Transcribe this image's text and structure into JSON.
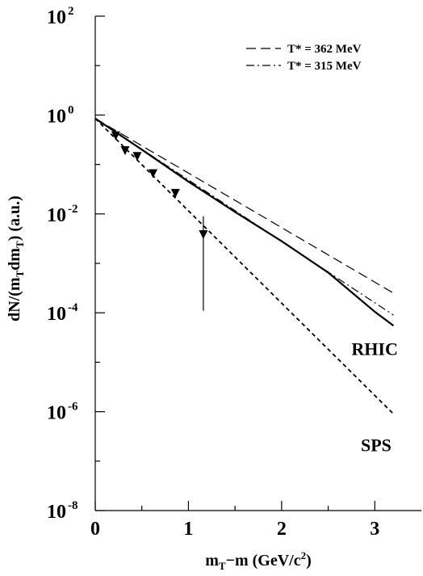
{
  "chart_data": {
    "type": "line",
    "xlabel": "m_T−m (GeV/c^2)",
    "ylabel": "dN/(m_T dm_T) (a.u.)",
    "xlabel_parts": {
      "m": "m",
      "sub": "T",
      "rest": "−m (GeV/c",
      "sup": "2",
      "close": ")"
    },
    "ylabel_parts": {
      "pre": "dN/(m",
      "sub1": "T",
      "mid": "dm",
      "sub2": "T",
      "post": ") (a.u.)"
    },
    "xlim": [
      0,
      3.5
    ],
    "ylim_log10": [
      -8,
      2
    ],
    "y_scale": "log",
    "x_ticks": [
      {
        "value": 0,
        "label": "0"
      },
      {
        "value": 1,
        "label": "1"
      },
      {
        "value": 2,
        "label": "2"
      },
      {
        "value": 3,
        "label": "3"
      }
    ],
    "y_ticks": [
      {
        "exp": 2,
        "base": "10",
        "sup": "2"
      },
      {
        "exp": 0,
        "base": "10",
        "sup": "0"
      },
      {
        "exp": -2,
        "base": "10",
        "sup": "-2"
      },
      {
        "exp": -4,
        "base": "10",
        "sup": "-4"
      },
      {
        "exp": -6,
        "base": "10",
        "sup": "-6"
      },
      {
        "exp": -8,
        "base": "10",
        "sup": "-8"
      }
    ],
    "grid": false,
    "legend_position": "top-right",
    "legend": [
      {
        "label": "T* = 362 MeV",
        "style": "dashed"
      },
      {
        "label": "T* = 315 MeV",
        "style": "dash-dot"
      }
    ],
    "series": [
      {
        "style": "dashed",
        "x": [
          0,
          3.2
        ],
        "y": [
          0.85,
          0.00025
        ]
      },
      {
        "style": "dash-dot",
        "x": [
          0,
          3.2
        ],
        "y": [
          0.85,
          9e-05
        ]
      },
      {
        "style": "solid",
        "label": "RHIC",
        "x": [
          0,
          0.5,
          1.0,
          1.5,
          2.0,
          2.5,
          3.0,
          3.2
        ],
        "y": [
          0.85,
          0.2,
          0.045,
          0.011,
          0.0028,
          0.00065,
          0.000105,
          5.5e-05
        ]
      },
      {
        "style": "short-dashed",
        "label": "SPS",
        "x": [
          0,
          3.2
        ],
        "y": [
          0.85,
          9e-07
        ]
      }
    ],
    "data_points": [
      {
        "x": 0.22,
        "y": 0.38
      },
      {
        "x": 0.32,
        "y": 0.19
      },
      {
        "x": 0.45,
        "y": 0.145
      },
      {
        "x": 0.62,
        "y": 0.065
      },
      {
        "x": 0.86,
        "y": 0.026
      },
      {
        "x": 1.16,
        "y": 0.0038,
        "err_low": 0.00011,
        "err_high": 0.009
      }
    ],
    "curve_labels": [
      {
        "text": "RHIC",
        "x": 2.75,
        "y": 1.4e-05
      },
      {
        "text": "SPS",
        "x": 2.85,
        "y": 1.6e-07
      }
    ]
  }
}
